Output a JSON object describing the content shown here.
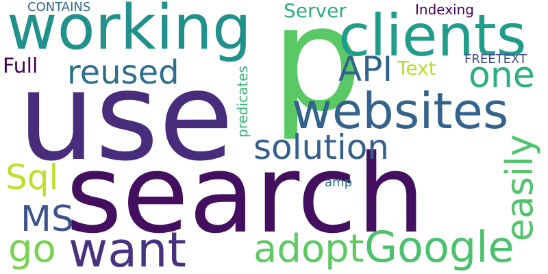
{
  "wordcloud": {
    "background": "#ffffff",
    "words": [
      {
        "id": "search",
        "text": "search",
        "color": "#440f5e"
      },
      {
        "id": "use",
        "text": "use",
        "color": "#472d7b"
      },
      {
        "id": "p",
        "text": "p",
        "color": "#5ac864"
      },
      {
        "id": "working",
        "text": "working",
        "color": "#21918c"
      },
      {
        "id": "clients",
        "text": "clients",
        "color": "#1f9d8a"
      },
      {
        "id": "websites",
        "text": "websites",
        "color": "#33638d"
      },
      {
        "id": "solution",
        "text": "solution",
        "color": "#355f8d"
      },
      {
        "id": "want",
        "text": "want",
        "color": "#46327e"
      },
      {
        "id": "adopt",
        "text": "adopt",
        "color": "#5ec962"
      },
      {
        "id": "google",
        "text": "Google",
        "color": "#4ac16d"
      },
      {
        "id": "reused",
        "text": "reused",
        "color": "#2d708e"
      },
      {
        "id": "one",
        "text": "one",
        "color": "#2ab07f"
      },
      {
        "id": "api",
        "text": "API",
        "color": "#33638d"
      },
      {
        "id": "easily",
        "text": "easily",
        "color": "#50c46a"
      },
      {
        "id": "sql",
        "text": "Sql",
        "color": "#bddf26"
      },
      {
        "id": "ms",
        "text": "MS",
        "color": "#3b528b"
      },
      {
        "id": "go",
        "text": "go",
        "color": "#7ad151"
      },
      {
        "id": "full",
        "text": "Full",
        "color": "#440154"
      },
      {
        "id": "text",
        "text": "Text",
        "color": "#b5de2b"
      },
      {
        "id": "server",
        "text": "Server",
        "color": "#29af7f"
      },
      {
        "id": "contains",
        "text": "CONTAINS",
        "color": "#31688e"
      },
      {
        "id": "indexing",
        "text": "Indexing",
        "color": "#440154"
      },
      {
        "id": "freetext",
        "text": "FREETEXT",
        "color": "#3e4a89"
      },
      {
        "id": "predicates",
        "text": "predicates",
        "color": "#35b779"
      },
      {
        "id": "amp",
        "text": "amp",
        "color": "#2c728e"
      }
    ]
  }
}
